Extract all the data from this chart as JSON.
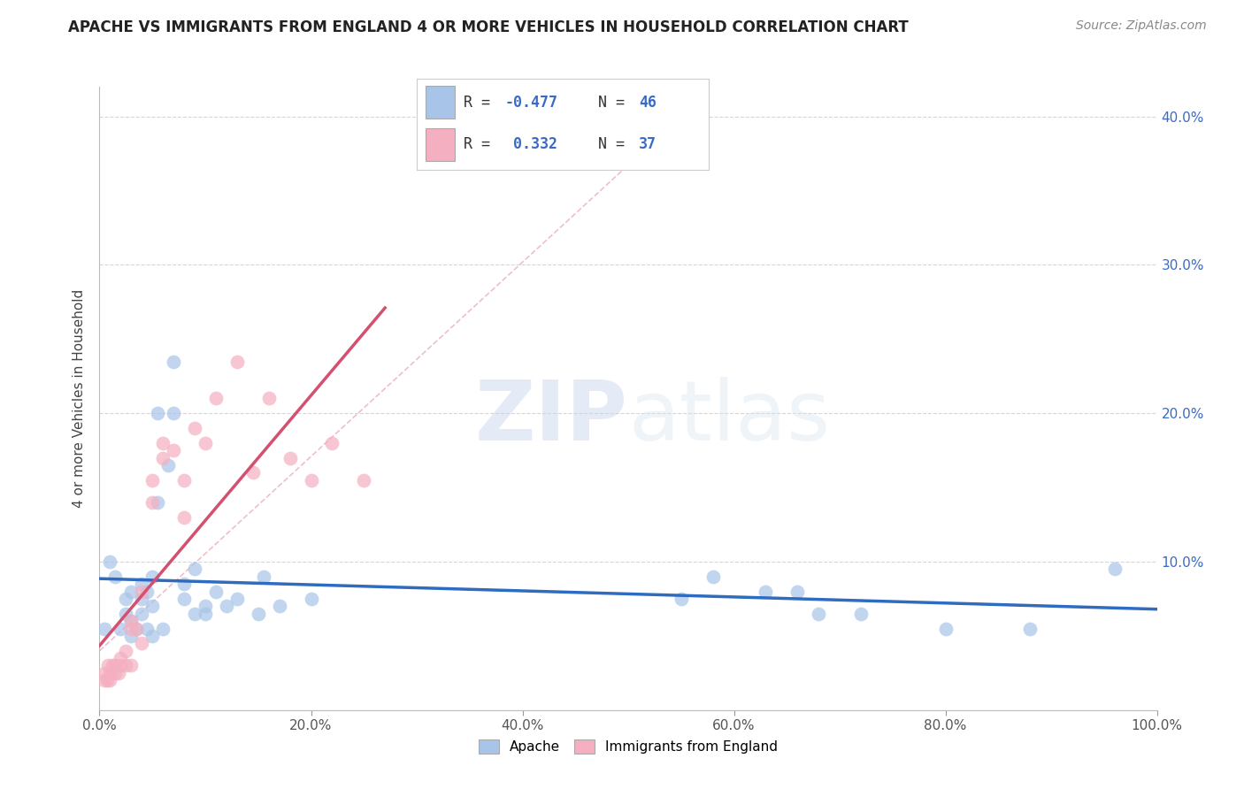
{
  "title": "APACHE VS IMMIGRANTS FROM ENGLAND 4 OR MORE VEHICLES IN HOUSEHOLD CORRELATION CHART",
  "source": "Source: ZipAtlas.com",
  "ylabel": "4 or more Vehicles in Household",
  "xlim": [
    0.0,
    1.0
  ],
  "ylim": [
    0.0,
    0.42
  ],
  "r_apache": -0.477,
  "n_apache": 46,
  "r_england": 0.332,
  "n_england": 37,
  "apache_color": "#a8c4e8",
  "england_color": "#f4afc0",
  "apache_line_color": "#2f6bbf",
  "england_line_color": "#d45070",
  "ref_line_color": "#d4a0b0",
  "apache_x": [
    0.005,
    0.01,
    0.015,
    0.02,
    0.025,
    0.025,
    0.03,
    0.03,
    0.03,
    0.035,
    0.04,
    0.04,
    0.04,
    0.045,
    0.045,
    0.05,
    0.05,
    0.05,
    0.055,
    0.055,
    0.06,
    0.065,
    0.07,
    0.07,
    0.08,
    0.08,
    0.09,
    0.09,
    0.1,
    0.1,
    0.11,
    0.12,
    0.13,
    0.15,
    0.155,
    0.17,
    0.2,
    0.55,
    0.58,
    0.63,
    0.66,
    0.68,
    0.72,
    0.8,
    0.88,
    0.96
  ],
  "apache_y": [
    0.055,
    0.1,
    0.09,
    0.055,
    0.065,
    0.075,
    0.05,
    0.06,
    0.08,
    0.055,
    0.065,
    0.075,
    0.085,
    0.055,
    0.08,
    0.05,
    0.07,
    0.09,
    0.14,
    0.2,
    0.055,
    0.165,
    0.2,
    0.235,
    0.075,
    0.085,
    0.065,
    0.095,
    0.065,
    0.07,
    0.08,
    0.07,
    0.075,
    0.065,
    0.09,
    0.07,
    0.075,
    0.075,
    0.09,
    0.08,
    0.08,
    0.065,
    0.065,
    0.055,
    0.055,
    0.095
  ],
  "england_x": [
    0.005,
    0.005,
    0.007,
    0.008,
    0.01,
    0.01,
    0.012,
    0.015,
    0.015,
    0.018,
    0.02,
    0.02,
    0.025,
    0.025,
    0.03,
    0.03,
    0.03,
    0.035,
    0.04,
    0.04,
    0.05,
    0.05,
    0.06,
    0.06,
    0.07,
    0.08,
    0.08,
    0.09,
    0.1,
    0.11,
    0.13,
    0.145,
    0.16,
    0.18,
    0.2,
    0.22,
    0.25
  ],
  "england_y": [
    0.02,
    0.025,
    0.02,
    0.03,
    0.02,
    0.025,
    0.03,
    0.025,
    0.03,
    0.025,
    0.03,
    0.035,
    0.03,
    0.04,
    0.03,
    0.055,
    0.06,
    0.055,
    0.045,
    0.08,
    0.14,
    0.155,
    0.17,
    0.18,
    0.175,
    0.13,
    0.155,
    0.19,
    0.18,
    0.21,
    0.235,
    0.16,
    0.21,
    0.17,
    0.155,
    0.18,
    0.155
  ],
  "watermark_zip": "ZIP",
  "watermark_atlas": "atlas",
  "background_color": "#ffffff",
  "grid_color": "#cccccc",
  "title_fontsize": 12,
  "source_fontsize": 10,
  "tick_fontsize": 11,
  "ylabel_fontsize": 11
}
